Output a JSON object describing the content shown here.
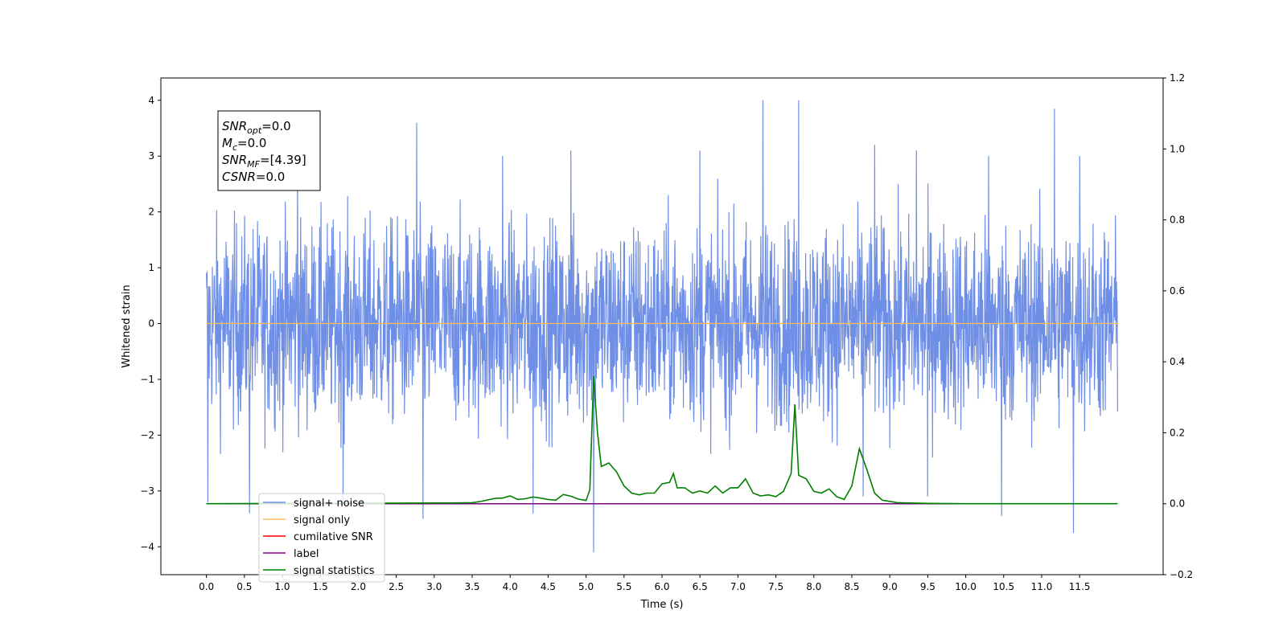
{
  "chart_data": {
    "type": "line",
    "xlabel": "Time (s)",
    "ylabel": "Whitened strain",
    "xlim": [
      -0.6,
      12.6
    ],
    "ylim": [
      -4.5,
      4.4
    ],
    "y2lim": [
      -0.2,
      1.2
    ],
    "x_ticks": [
      "0.0",
      "0.5",
      "1.0",
      "1.5",
      "2.0",
      "2.5",
      "3.0",
      "3.5",
      "4.0",
      "4.5",
      "5.0",
      "5.5",
      "6.0",
      "6.5",
      "7.0",
      "7.5",
      "8.0",
      "8.5",
      "9.0",
      "9.5",
      "10.0",
      "10.5",
      "11.0",
      "11.5"
    ],
    "y_ticks": [
      "4",
      "3",
      "2",
      "1",
      "0",
      "−1",
      "−2",
      "−3",
      "−4"
    ],
    "y2_ticks": [
      "1.2",
      "1.0",
      "0.8",
      "0.6",
      "0.4",
      "0.2",
      "0.0",
      "−0.2"
    ],
    "grid": false,
    "legend_position": "lower-left",
    "colors": {
      "noise": "#6f8fe6",
      "signal": "#ffbe55",
      "snr": "#ff0000",
      "label": "#800080",
      "stats": "#008000"
    },
    "annotation": [
      {
        "base": "SNR",
        "sub": "opt",
        "rest": "=0.0"
      },
      {
        "base": "M",
        "sub": "c",
        "rest": "=0.0"
      },
      {
        "base": "SNR",
        "sub": "MF",
        "rest": "=[4.39]"
      },
      {
        "base": "CSNR",
        "sub": "",
        "rest": "=0.0"
      }
    ],
    "series": [
      {
        "name": "signal+ noise",
        "axis": "left",
        "x_range": [
          0.0,
          12.0
        ],
        "amplitude_typical": 2.0,
        "peaks": [
          [
            0.57,
            -3.4
          ],
          [
            0.02,
            -3.2
          ],
          [
            2.77,
            3.6
          ],
          [
            2.85,
            -3.5
          ],
          [
            5.1,
            -4.1
          ],
          [
            7.33,
            4.0
          ],
          [
            7.8,
            4.0
          ],
          [
            11.17,
            3.85
          ],
          [
            11.42,
            -3.75
          ],
          [
            10.47,
            -3.45
          ],
          [
            4.3,
            -3.4
          ],
          [
            1.2,
            2.9
          ],
          [
            3.9,
            3.0
          ],
          [
            6.5,
            3.1
          ],
          [
            8.8,
            3.2
          ],
          [
            9.35,
            3.1
          ],
          [
            10.3,
            3.0
          ],
          [
            11.5,
            3.0
          ],
          [
            4.8,
            3.1
          ],
          [
            1.8,
            -3.2
          ],
          [
            9.5,
            -3.1
          ],
          [
            8.65,
            -3.1
          ]
        ]
      },
      {
        "name": "signal only",
        "axis": "left",
        "x": [
          0.0,
          12.0
        ],
        "y": [
          0.0,
          0.0
        ]
      },
      {
        "name": "cumilative SNR",
        "axis": "right",
        "x": [],
        "y": []
      },
      {
        "name": "label",
        "axis": "right",
        "x": [
          0.0,
          12.0
        ],
        "y": [
          0.0,
          0.0
        ]
      },
      {
        "name": "signal statistics",
        "axis": "right",
        "x": [
          0.0,
          3.0,
          3.2,
          3.5,
          3.6,
          3.8,
          3.9,
          4.0,
          4.1,
          4.2,
          4.3,
          4.4,
          4.5,
          4.6,
          4.7,
          4.8,
          4.9,
          5.0,
          5.05,
          5.1,
          5.15,
          5.2,
          5.3,
          5.4,
          5.5,
          5.6,
          5.7,
          5.8,
          5.9,
          6.0,
          6.1,
          6.15,
          6.2,
          6.3,
          6.4,
          6.5,
          6.6,
          6.7,
          6.8,
          6.9,
          7.0,
          7.1,
          7.2,
          7.3,
          7.4,
          7.5,
          7.6,
          7.7,
          7.75,
          7.8,
          7.9,
          8.0,
          8.1,
          8.2,
          8.3,
          8.4,
          8.5,
          8.6,
          8.7,
          8.8,
          8.9,
          9.1,
          9.5,
          10.0,
          12.0
        ],
        "y": [
          0.0,
          0.002,
          0.002,
          0.003,
          0.006,
          0.015,
          0.016,
          0.022,
          0.012,
          0.014,
          0.019,
          0.016,
          0.012,
          0.01,
          0.026,
          0.021,
          0.013,
          0.009,
          0.04,
          0.36,
          0.2,
          0.105,
          0.115,
          0.09,
          0.05,
          0.03,
          0.025,
          0.03,
          0.03,
          0.056,
          0.06,
          0.085,
          0.045,
          0.045,
          0.03,
          0.036,
          0.03,
          0.05,
          0.03,
          0.045,
          0.045,
          0.07,
          0.03,
          0.022,
          0.025,
          0.02,
          0.035,
          0.085,
          0.28,
          0.08,
          0.07,
          0.035,
          0.03,
          0.042,
          0.02,
          0.012,
          0.05,
          0.155,
          0.095,
          0.03,
          0.01,
          0.003,
          0.001,
          0.0,
          0.0
        ]
      }
    ]
  }
}
